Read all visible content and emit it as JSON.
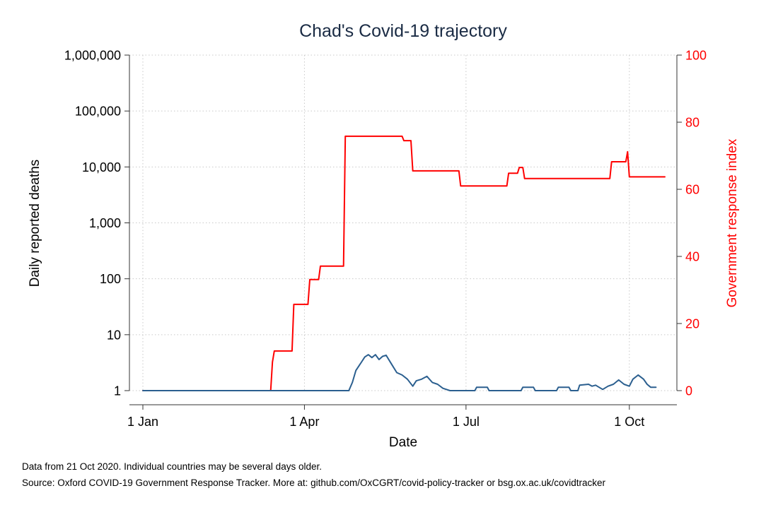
{
  "chart_data": {
    "type": "line",
    "title": "Chad's Covid-19 trajectory",
    "xlabel": "Date",
    "ylabel_left": "Daily reported deaths",
    "ylabel_right": "Government response index",
    "x_ticks": [
      "1 Jan",
      "1 Apr",
      "1 Jul",
      "1 Oct"
    ],
    "y_left_scale": "log",
    "y_left_ticks": [
      "1",
      "10",
      "100",
      "1,000",
      "10,000",
      "100,000",
      "1,000,000"
    ],
    "y_left_range": [
      1,
      1000000
    ],
    "y_right_ticks": [
      "0",
      "20",
      "40",
      "60",
      "80",
      "100"
    ],
    "y_right_range": [
      0,
      100
    ],
    "grid": true,
    "series": [
      {
        "axis": "right",
        "color": "#ff0000",
        "points": [
          [
            "2020-01-01",
            0
          ],
          [
            "2020-03-13",
            0
          ],
          [
            "2020-03-14",
            8.5
          ],
          [
            "2020-03-15",
            11.8
          ],
          [
            "2020-03-25",
            11.8
          ],
          [
            "2020-03-26",
            25.7
          ],
          [
            "2020-04-03",
            25.7
          ],
          [
            "2020-04-04",
            33.1
          ],
          [
            "2020-04-09",
            33.1
          ],
          [
            "2020-04-10",
            37.1
          ],
          [
            "2020-04-23",
            37.1
          ],
          [
            "2020-04-24",
            75.8
          ],
          [
            "2020-05-26",
            75.8
          ],
          [
            "2020-05-27",
            74.5
          ],
          [
            "2020-05-31",
            74.5
          ],
          [
            "2020-06-01",
            65.5
          ],
          [
            "2020-06-27",
            65.5
          ],
          [
            "2020-06-28",
            61.0
          ],
          [
            "2020-07-24",
            61.0
          ],
          [
            "2020-07-25",
            64.8
          ],
          [
            "2020-07-30",
            64.8
          ],
          [
            "2020-07-31",
            66.5
          ],
          [
            "2020-08-02",
            66.5
          ],
          [
            "2020-08-03",
            63.2
          ],
          [
            "2020-09-20",
            63.2
          ],
          [
            "2020-09-21",
            68.2
          ],
          [
            "2020-09-29",
            68.2
          ],
          [
            "2020-09-30",
            71.2
          ],
          [
            "2020-10-01",
            63.7
          ],
          [
            "2020-10-21",
            63.7
          ]
        ]
      },
      {
        "axis": "left",
        "color": "#2b5f8f",
        "points": [
          [
            "2020-01-01",
            1
          ],
          [
            "2020-04-26",
            1
          ],
          [
            "2020-04-28",
            1.4
          ],
          [
            "2020-04-30",
            2.3
          ],
          [
            "2020-05-03",
            3.2
          ],
          [
            "2020-05-05",
            4.0
          ],
          [
            "2020-05-07",
            4.4
          ],
          [
            "2020-05-09",
            3.9
          ],
          [
            "2020-05-11",
            4.4
          ],
          [
            "2020-05-13",
            3.6
          ],
          [
            "2020-05-15",
            4.1
          ],
          [
            "2020-05-17",
            4.3
          ],
          [
            "2020-05-20",
            3.0
          ],
          [
            "2020-05-23",
            2.1
          ],
          [
            "2020-05-26",
            1.9
          ],
          [
            "2020-05-29",
            1.6
          ],
          [
            "2020-06-01",
            1.2
          ],
          [
            "2020-06-03",
            1.5
          ],
          [
            "2020-06-06",
            1.6
          ],
          [
            "2020-06-09",
            1.8
          ],
          [
            "2020-06-12",
            1.4
          ],
          [
            "2020-06-15",
            1.3
          ],
          [
            "2020-06-18",
            1.1
          ],
          [
            "2020-06-22",
            1.0
          ],
          [
            "2020-07-06",
            1.0
          ],
          [
            "2020-07-07",
            1.15
          ],
          [
            "2020-07-13",
            1.15
          ],
          [
            "2020-07-14",
            1.0
          ],
          [
            "2020-08-01",
            1.0
          ],
          [
            "2020-08-02",
            1.15
          ],
          [
            "2020-08-08",
            1.15
          ],
          [
            "2020-08-09",
            1.0
          ],
          [
            "2020-08-21",
            1.0
          ],
          [
            "2020-08-22",
            1.15
          ],
          [
            "2020-08-28",
            1.15
          ],
          [
            "2020-08-29",
            1.0
          ],
          [
            "2020-09-02",
            1.0
          ],
          [
            "2020-09-03",
            1.25
          ],
          [
            "2020-09-08",
            1.3
          ],
          [
            "2020-09-10",
            1.2
          ],
          [
            "2020-09-12",
            1.25
          ],
          [
            "2020-09-16",
            1.05
          ],
          [
            "2020-09-19",
            1.2
          ],
          [
            "2020-09-22",
            1.3
          ],
          [
            "2020-09-25",
            1.55
          ],
          [
            "2020-09-28",
            1.3
          ],
          [
            "2020-10-01",
            1.2
          ],
          [
            "2020-10-03",
            1.6
          ],
          [
            "2020-10-06",
            1.9
          ],
          [
            "2020-10-09",
            1.6
          ],
          [
            "2020-10-11",
            1.3
          ],
          [
            "2020-10-13",
            1.15
          ],
          [
            "2020-10-16",
            1.15
          ]
        ]
      }
    ]
  },
  "footnotes": {
    "line1": "Data from 21 Oct 2020. Individual countries may be several days older.",
    "line2": "Source: Oxford COVID-19 Government Response Tracker. More at: github.com/OxCGRT/covid-policy-tracker or bsg.ox.ac.uk/covidtracker"
  }
}
